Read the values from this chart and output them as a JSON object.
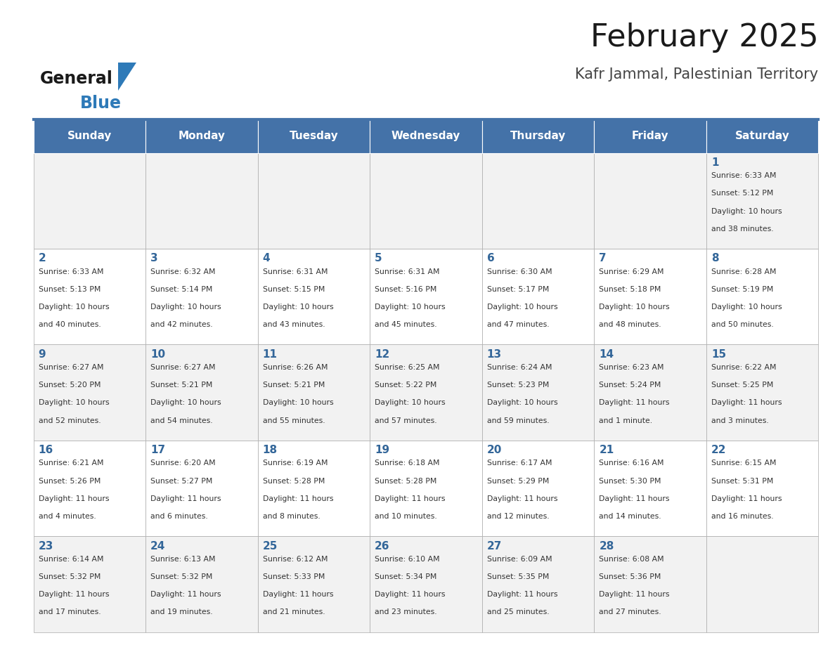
{
  "title": "February 2025",
  "subtitle": "Kafr Jammal, Palestinian Territory",
  "days_of_week": [
    "Sunday",
    "Monday",
    "Tuesday",
    "Wednesday",
    "Thursday",
    "Friday",
    "Saturday"
  ],
  "header_bg": "#4472a8",
  "header_text": "#ffffff",
  "row_bg_odd": "#f2f2f2",
  "row_bg_even": "#ffffff",
  "cell_border": "#aaaaaa",
  "day_number_color": "#336699",
  "info_text_color": "#333333",
  "calendar_data": [
    [
      null,
      null,
      null,
      null,
      null,
      null,
      {
        "day": 1,
        "sunrise": "6:33 AM",
        "sunset": "5:12 PM",
        "daylight_line1": "10 hours",
        "daylight_line2": "and 38 minutes."
      }
    ],
    [
      {
        "day": 2,
        "sunrise": "6:33 AM",
        "sunset": "5:13 PM",
        "daylight_line1": "10 hours",
        "daylight_line2": "and 40 minutes."
      },
      {
        "day": 3,
        "sunrise": "6:32 AM",
        "sunset": "5:14 PM",
        "daylight_line1": "10 hours",
        "daylight_line2": "and 42 minutes."
      },
      {
        "day": 4,
        "sunrise": "6:31 AM",
        "sunset": "5:15 PM",
        "daylight_line1": "10 hours",
        "daylight_line2": "and 43 minutes."
      },
      {
        "day": 5,
        "sunrise": "6:31 AM",
        "sunset": "5:16 PM",
        "daylight_line1": "10 hours",
        "daylight_line2": "and 45 minutes."
      },
      {
        "day": 6,
        "sunrise": "6:30 AM",
        "sunset": "5:17 PM",
        "daylight_line1": "10 hours",
        "daylight_line2": "and 47 minutes."
      },
      {
        "day": 7,
        "sunrise": "6:29 AM",
        "sunset": "5:18 PM",
        "daylight_line1": "10 hours",
        "daylight_line2": "and 48 minutes."
      },
      {
        "day": 8,
        "sunrise": "6:28 AM",
        "sunset": "5:19 PM",
        "daylight_line1": "10 hours",
        "daylight_line2": "and 50 minutes."
      }
    ],
    [
      {
        "day": 9,
        "sunrise": "6:27 AM",
        "sunset": "5:20 PM",
        "daylight_line1": "10 hours",
        "daylight_line2": "and 52 minutes."
      },
      {
        "day": 10,
        "sunrise": "6:27 AM",
        "sunset": "5:21 PM",
        "daylight_line1": "10 hours",
        "daylight_line2": "and 54 minutes."
      },
      {
        "day": 11,
        "sunrise": "6:26 AM",
        "sunset": "5:21 PM",
        "daylight_line1": "10 hours",
        "daylight_line2": "and 55 minutes."
      },
      {
        "day": 12,
        "sunrise": "6:25 AM",
        "sunset": "5:22 PM",
        "daylight_line1": "10 hours",
        "daylight_line2": "and 57 minutes."
      },
      {
        "day": 13,
        "sunrise": "6:24 AM",
        "sunset": "5:23 PM",
        "daylight_line1": "10 hours",
        "daylight_line2": "and 59 minutes."
      },
      {
        "day": 14,
        "sunrise": "6:23 AM",
        "sunset": "5:24 PM",
        "daylight_line1": "11 hours",
        "daylight_line2": "and 1 minute."
      },
      {
        "day": 15,
        "sunrise": "6:22 AM",
        "sunset": "5:25 PM",
        "daylight_line1": "11 hours",
        "daylight_line2": "and 3 minutes."
      }
    ],
    [
      {
        "day": 16,
        "sunrise": "6:21 AM",
        "sunset": "5:26 PM",
        "daylight_line1": "11 hours",
        "daylight_line2": "and 4 minutes."
      },
      {
        "day": 17,
        "sunrise": "6:20 AM",
        "sunset": "5:27 PM",
        "daylight_line1": "11 hours",
        "daylight_line2": "and 6 minutes."
      },
      {
        "day": 18,
        "sunrise": "6:19 AM",
        "sunset": "5:28 PM",
        "daylight_line1": "11 hours",
        "daylight_line2": "and 8 minutes."
      },
      {
        "day": 19,
        "sunrise": "6:18 AM",
        "sunset": "5:28 PM",
        "daylight_line1": "11 hours",
        "daylight_line2": "and 10 minutes."
      },
      {
        "day": 20,
        "sunrise": "6:17 AM",
        "sunset": "5:29 PM",
        "daylight_line1": "11 hours",
        "daylight_line2": "and 12 minutes."
      },
      {
        "day": 21,
        "sunrise": "6:16 AM",
        "sunset": "5:30 PM",
        "daylight_line1": "11 hours",
        "daylight_line2": "and 14 minutes."
      },
      {
        "day": 22,
        "sunrise": "6:15 AM",
        "sunset": "5:31 PM",
        "daylight_line1": "11 hours",
        "daylight_line2": "and 16 minutes."
      }
    ],
    [
      {
        "day": 23,
        "sunrise": "6:14 AM",
        "sunset": "5:32 PM",
        "daylight_line1": "11 hours",
        "daylight_line2": "and 17 minutes."
      },
      {
        "day": 24,
        "sunrise": "6:13 AM",
        "sunset": "5:32 PM",
        "daylight_line1": "11 hours",
        "daylight_line2": "and 19 minutes."
      },
      {
        "day": 25,
        "sunrise": "6:12 AM",
        "sunset": "5:33 PM",
        "daylight_line1": "11 hours",
        "daylight_line2": "and 21 minutes."
      },
      {
        "day": 26,
        "sunrise": "6:10 AM",
        "sunset": "5:34 PM",
        "daylight_line1": "11 hours",
        "daylight_line2": "and 23 minutes."
      },
      {
        "day": 27,
        "sunrise": "6:09 AM",
        "sunset": "5:35 PM",
        "daylight_line1": "11 hours",
        "daylight_line2": "and 25 minutes."
      },
      {
        "day": 28,
        "sunrise": "6:08 AM",
        "sunset": "5:36 PM",
        "daylight_line1": "11 hours",
        "daylight_line2": "and 27 minutes."
      },
      null
    ]
  ],
  "logo_color_general": "#1a1a1a",
  "logo_color_blue": "#2e7ab8",
  "logo_triangle_color": "#2e7ab8"
}
